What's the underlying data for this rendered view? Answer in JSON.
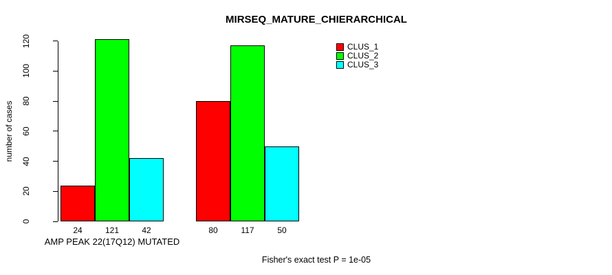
{
  "chart_data": {
    "type": "bar",
    "title": "MIRSEQ_MATURE_CHIERARCHICAL",
    "ylabel": "number of cases",
    "xlabel": "",
    "annotation": "Fisher's exact test P = 1e-05",
    "ylim": [
      0,
      120
    ],
    "yticks": [
      0,
      20,
      40,
      60,
      80,
      100,
      120
    ],
    "grid": false,
    "legend_position": "top-right",
    "show_bar_value_labels": true,
    "series": [
      {
        "name": "CLUS_1",
        "color": "#ff0000"
      },
      {
        "name": "CLUS_2",
        "color": "#00ff00"
      },
      {
        "name": "CLUS_3",
        "color": "#00ffff"
      }
    ],
    "groups": [
      {
        "label": "AMP PEAK 22(17Q12) MUTATED",
        "values": [
          24,
          121,
          42
        ]
      },
      {
        "label": "",
        "values": [
          80,
          117,
          50
        ]
      }
    ]
  }
}
